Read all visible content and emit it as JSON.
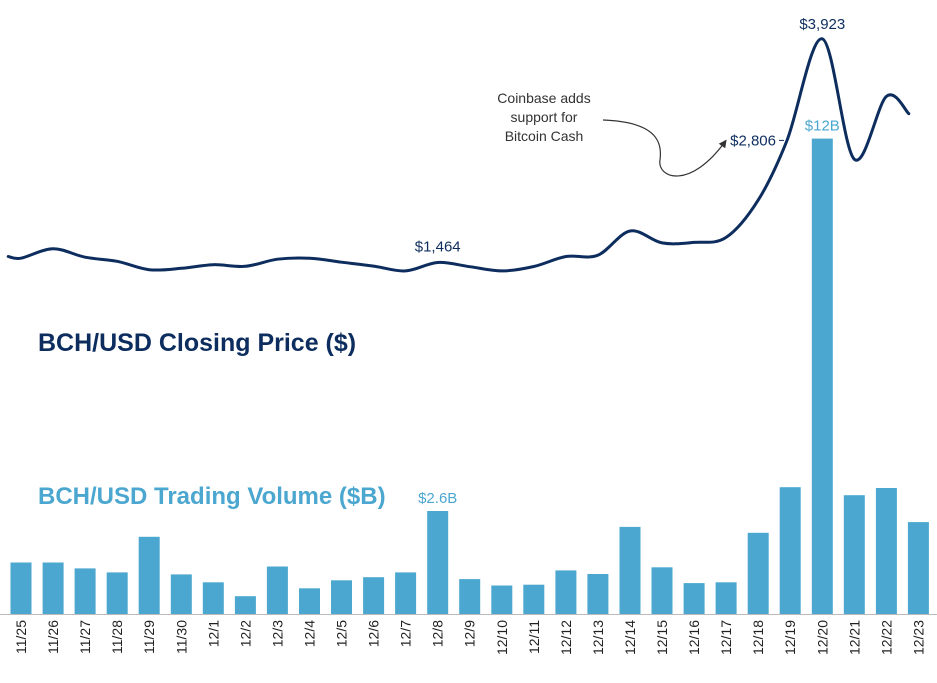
{
  "chart_data": {
    "type": "bar+line",
    "categories": [
      "11/25",
      "11/26",
      "11/27",
      "11/28",
      "11/29",
      "11/30",
      "12/1",
      "12/2",
      "12/3",
      "12/4",
      "12/5",
      "12/6",
      "12/7",
      "12/8",
      "12/9",
      "12/10",
      "12/11",
      "12/12",
      "12/13",
      "12/14",
      "12/15",
      "12/16",
      "12/17",
      "12/18",
      "12/19",
      "12/20",
      "12/21",
      "12/22",
      "12/23"
    ],
    "series": [
      {
        "name": "BCH/USD Trading Volume ($B)",
        "type": "bar",
        "axis": "volume",
        "values": [
          1.3,
          1.3,
          1.15,
          1.05,
          1.95,
          1.0,
          0.8,
          0.45,
          1.2,
          0.65,
          0.85,
          0.93,
          1.05,
          2.6,
          0.88,
          0.72,
          0.74,
          1.1,
          1.01,
          2.2,
          1.18,
          0.78,
          0.8,
          2.05,
          3.2,
          12.0,
          3.0,
          3.18,
          2.32
        ]
      },
      {
        "name": "BCH/USD Closing Price ($)",
        "type": "line",
        "axis": "price",
        "points": [
          [
            -0.4,
            1530
          ],
          [
            0,
            1512
          ],
          [
            1,
            1615
          ],
          [
            2,
            1522
          ],
          [
            3,
            1477
          ],
          [
            4,
            1385
          ],
          [
            5,
            1400
          ],
          [
            6,
            1440
          ],
          [
            7,
            1422
          ],
          [
            8,
            1500
          ],
          [
            9,
            1512
          ],
          [
            10,
            1468
          ],
          [
            11,
            1425
          ],
          [
            12,
            1372
          ],
          [
            13,
            1464
          ],
          [
            14,
            1418
          ],
          [
            15,
            1372
          ],
          [
            16,
            1420
          ],
          [
            17,
            1530
          ],
          [
            18,
            1545
          ],
          [
            19,
            1810
          ],
          [
            20,
            1680
          ],
          [
            21,
            1685
          ],
          [
            22,
            1740
          ],
          [
            23,
            2150
          ],
          [
            23.9,
            2806
          ],
          [
            25,
            3923
          ],
          [
            26,
            2600
          ],
          [
            27,
            3290
          ],
          [
            27.7,
            3100
          ]
        ]
      }
    ],
    "annotations": {
      "price_labels": [
        {
          "category": "12/8",
          "text": "$1,464"
        },
        {
          "category": "12/19",
          "text": "$2,806"
        },
        {
          "category": "12/20",
          "text": "$3,923"
        }
      ],
      "volume_labels": [
        {
          "category": "12/8",
          "text": "$2.6B"
        },
        {
          "category": "12/20",
          "text": "$12B"
        }
      ],
      "callout": {
        "lines": [
          "Coinbase adds",
          "support for",
          "Bitcoin Cash"
        ],
        "target": "$2,806"
      }
    },
    "price_title": "BCH/USD Closing Price ($)",
    "volume_title": "BCH/USD Trading Volume ($B)",
    "price_ylim": [
      -2400,
      4350
    ],
    "volume_ylim": [
      0,
      15.5
    ],
    "xlabel": "",
    "ylabel": "",
    "grid": false,
    "colors": {
      "price": "#0d2d5e",
      "volume": "#4ba7cf",
      "axis": "#bbbbbb",
      "callout": "#333333"
    }
  }
}
